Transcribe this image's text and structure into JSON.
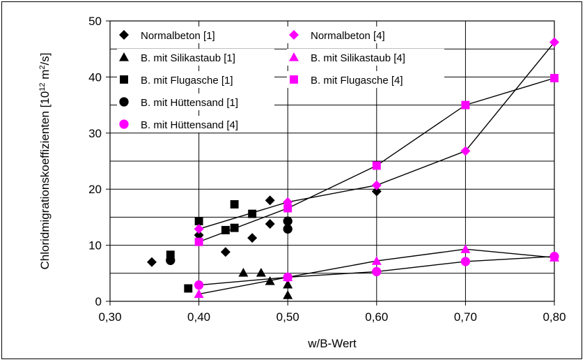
{
  "chart_data": {
    "type": "scatter",
    "title": "",
    "xlabel": "w/B-Wert",
    "ylabel_main": "Chloridmigrationskoeffizienten [10",
    "ylabel_exp": "12",
    "ylabel_unit": " m",
    "ylabel_unit_exp": "2",
    "ylabel_end": "/s]",
    "xlim": [
      0.3,
      0.8
    ],
    "ylim": [
      0,
      50
    ],
    "x_ticks": [
      0.3,
      0.4,
      0.5,
      0.6,
      0.7,
      0.8
    ],
    "x_tick_labels": [
      "0,30",
      "0,40",
      "0,50",
      "0,60",
      "0,70",
      "0,80"
    ],
    "y_ticks": [
      0,
      10,
      20,
      30,
      40,
      50
    ],
    "y_tick_labels": [
      "0",
      "10",
      "20",
      "30",
      "40",
      "50"
    ],
    "grid": true,
    "legend_placement": "top-left",
    "series": [
      {
        "name": "Normalbeton [1]",
        "marker": "diamond",
        "color": "#000000",
        "connected": false,
        "points": [
          [
            0.347,
            7.0
          ],
          [
            0.4,
            11.8
          ],
          [
            0.43,
            8.8
          ],
          [
            0.46,
            11.3
          ],
          [
            0.48,
            13.8
          ],
          [
            0.48,
            18.0
          ],
          [
            0.6,
            19.6
          ]
        ]
      },
      {
        "name": "B. mit Silikastaub [1]",
        "marker": "triangle",
        "color": "#000000",
        "connected": false,
        "points": [
          [
            0.45,
            5.1
          ],
          [
            0.47,
            5.1
          ],
          [
            0.48,
            3.6
          ],
          [
            0.5,
            3.0
          ],
          [
            0.5,
            1.1
          ]
        ]
      },
      {
        "name": "B. mit Flugasche [1]",
        "marker": "square",
        "color": "#000000",
        "connected": false,
        "points": [
          [
            0.368,
            8.3
          ],
          [
            0.388,
            2.3
          ],
          [
            0.4,
            14.3
          ],
          [
            0.43,
            12.7
          ],
          [
            0.44,
            13.1
          ],
          [
            0.44,
            17.3
          ],
          [
            0.46,
            15.6
          ]
        ]
      },
      {
        "name": "B. mit Hüttensand [1]",
        "marker": "circle",
        "color": "#000000",
        "connected": false,
        "points": [
          [
            0.368,
            7.3
          ],
          [
            0.5,
            14.3
          ],
          [
            0.5,
            12.9
          ]
        ]
      },
      {
        "name": "Normalbeton [4]",
        "marker": "diamond",
        "color": "#ff00ff",
        "connected": true,
        "points": [
          [
            0.4,
            12.9
          ],
          [
            0.5,
            17.7
          ],
          [
            0.6,
            20.7
          ],
          [
            0.7,
            26.8
          ],
          [
            0.8,
            46.2
          ]
        ]
      },
      {
        "name": "B. mit Silikastaub [4]",
        "marker": "triangle",
        "color": "#ff00ff",
        "connected": true,
        "points": [
          [
            0.4,
            1.3
          ],
          [
            0.5,
            4.3
          ],
          [
            0.6,
            7.2
          ],
          [
            0.7,
            9.3
          ],
          [
            0.8,
            7.8
          ]
        ]
      },
      {
        "name": "B. mit Flugasche [4]",
        "marker": "square",
        "color": "#ff00ff",
        "connected": true,
        "points": [
          [
            0.4,
            10.6
          ],
          [
            0.5,
            16.6
          ],
          [
            0.6,
            24.2
          ],
          [
            0.7,
            35.0
          ],
          [
            0.8,
            39.8
          ]
        ]
      },
      {
        "name": "B. mit Hüttensand [4]",
        "marker": "circle",
        "color": "#ff00ff",
        "connected": true,
        "points": [
          [
            0.4,
            2.9
          ],
          [
            0.5,
            4.3
          ],
          [
            0.6,
            5.3
          ],
          [
            0.7,
            7.1
          ],
          [
            0.8,
            8.0
          ]
        ]
      }
    ]
  }
}
